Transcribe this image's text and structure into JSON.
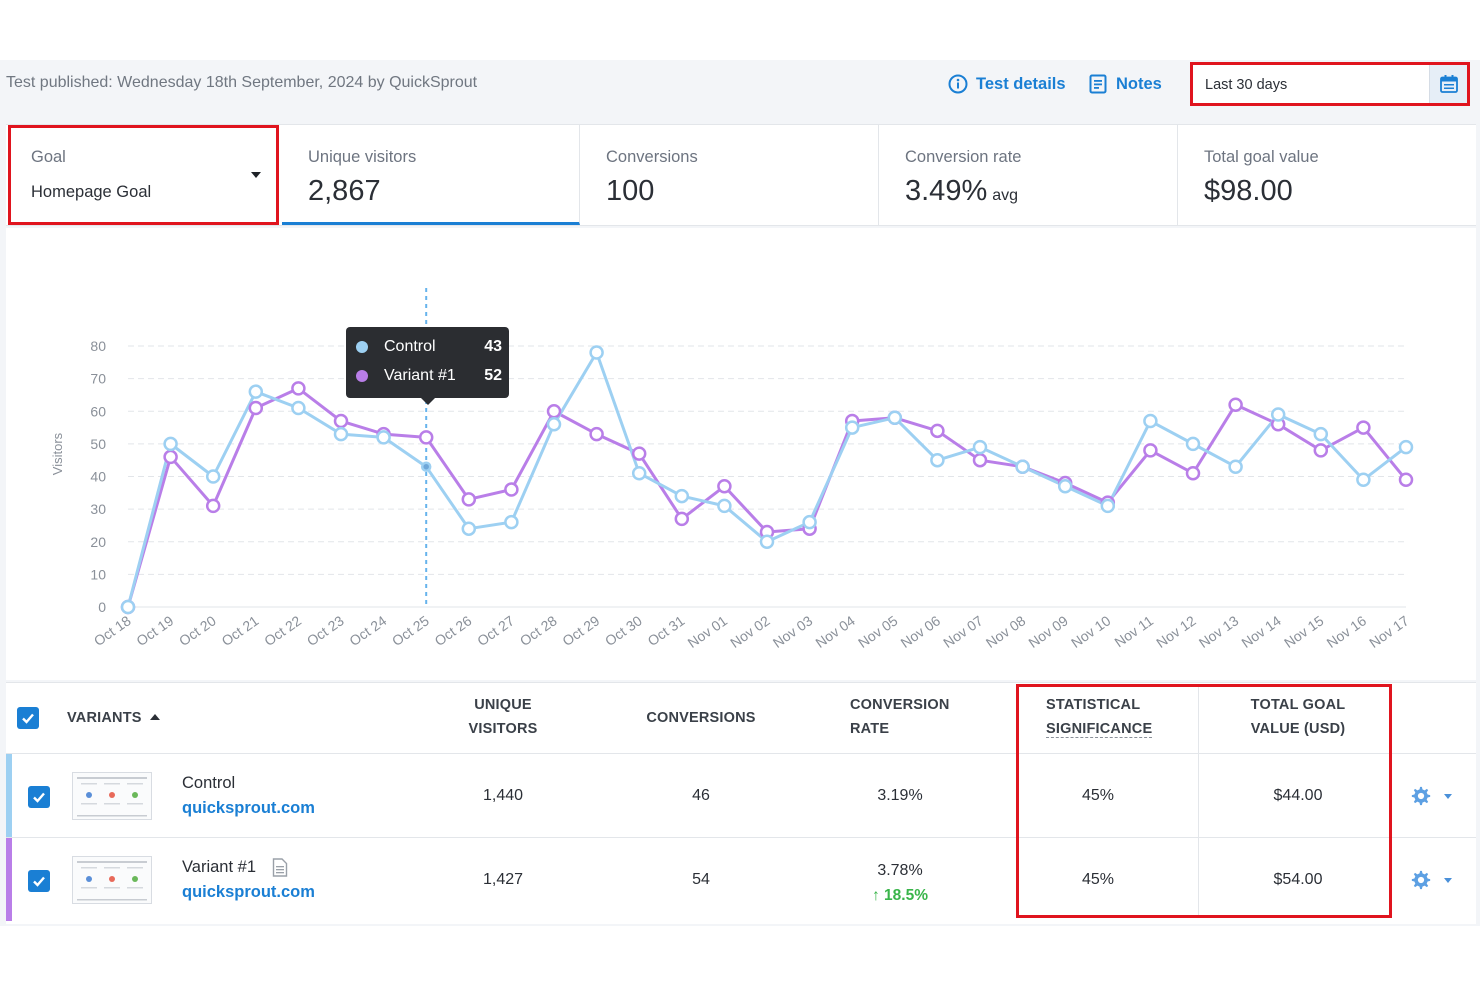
{
  "header": {
    "published_text": "Test published: Wednesday 18th September, 2024 by QuickSprout",
    "test_details_label": "Test details",
    "notes_label": "Notes",
    "date_range": "Last 30 days"
  },
  "metrics": {
    "goal_label": "Goal",
    "goal_value": "Homepage Goal",
    "unique_visitors_label": "Unique visitors",
    "unique_visitors_value": "2,867",
    "conversions_label": "Conversions",
    "conversions_value": "100",
    "conversion_rate_label": "Conversion rate",
    "conversion_rate_value": "3.49%",
    "conversion_rate_suffix": "avg",
    "total_goal_value_label": "Total goal value",
    "total_goal_value_value": "$98.00"
  },
  "colors": {
    "control": "#9dd0f2",
    "variant": "#b97ee8",
    "accent": "#1a7fd4",
    "highlight": "#e0141e",
    "positive": "#39b54a"
  },
  "chart_data": {
    "type": "line",
    "ylabel": "Visitors",
    "ylim": [
      0,
      80
    ],
    "yticks": [
      0,
      10,
      20,
      30,
      40,
      50,
      60,
      70,
      80
    ],
    "categories": [
      "Oct 18",
      "Oct 19",
      "Oct 20",
      "Oct 21",
      "Oct 22",
      "Oct 23",
      "Oct 24",
      "Oct 25",
      "Oct 26",
      "Oct 27",
      "Oct 28",
      "Oct 29",
      "Oct 30",
      "Oct 31",
      "Nov 01",
      "Nov 02",
      "Nov 03",
      "Nov 04",
      "Nov 05",
      "Nov 06",
      "Nov 07",
      "Nov 08",
      "Nov 09",
      "Nov 10",
      "Nov 11",
      "Nov 12",
      "Nov 13",
      "Nov 14",
      "Nov 15",
      "Nov 16",
      "Nov 17"
    ],
    "series": [
      {
        "name": "Control",
        "values": [
          0,
          50,
          40,
          66,
          61,
          53,
          52,
          43,
          24,
          26,
          56,
          78,
          41,
          34,
          31,
          20,
          26,
          55,
          58,
          45,
          49,
          43,
          37,
          31,
          57,
          50,
          43,
          59,
          53,
          39,
          49
        ]
      },
      {
        "name": "Variant #1",
        "values": [
          0,
          46,
          31,
          61,
          67,
          57,
          53,
          52,
          33,
          36,
          60,
          53,
          47,
          27,
          37,
          23,
          24,
          57,
          58,
          54,
          45,
          43,
          38,
          32,
          48,
          41,
          62,
          56,
          48,
          55,
          39
        ]
      }
    ],
    "hover_index": 7,
    "grid": true,
    "legend": "tooltip"
  },
  "tooltip": {
    "control_label": "Control",
    "control_value": "43",
    "variant_label": "Variant #1",
    "variant_value": "52"
  },
  "table": {
    "headers": {
      "variants": "VARIANTS",
      "unique_visitors_1": "UNIQUE",
      "unique_visitors_2": "VISITORS",
      "conversions": "CONVERSIONS",
      "conversion_rate_1": "CONVERSION",
      "conversion_rate_2": "RATE",
      "stat_sig_1": "STATISTICAL",
      "stat_sig_2": "SIGNIFICANCE",
      "goal_value_1": "TOTAL GOAL",
      "goal_value_2": "VALUE (USD)"
    },
    "rows": [
      {
        "name": "Control",
        "url": "quicksprout.com",
        "unique_visitors": "1,440",
        "conversions": "46",
        "conversion_rate": "3.19%",
        "lift": "",
        "significance": "45%",
        "goal_value": "$44.00"
      },
      {
        "name": "Variant #1",
        "url": "quicksprout.com",
        "unique_visitors": "1,427",
        "conversions": "54",
        "conversion_rate": "3.78%",
        "lift": "18.5%",
        "significance": "45%",
        "goal_value": "$54.00"
      }
    ]
  }
}
